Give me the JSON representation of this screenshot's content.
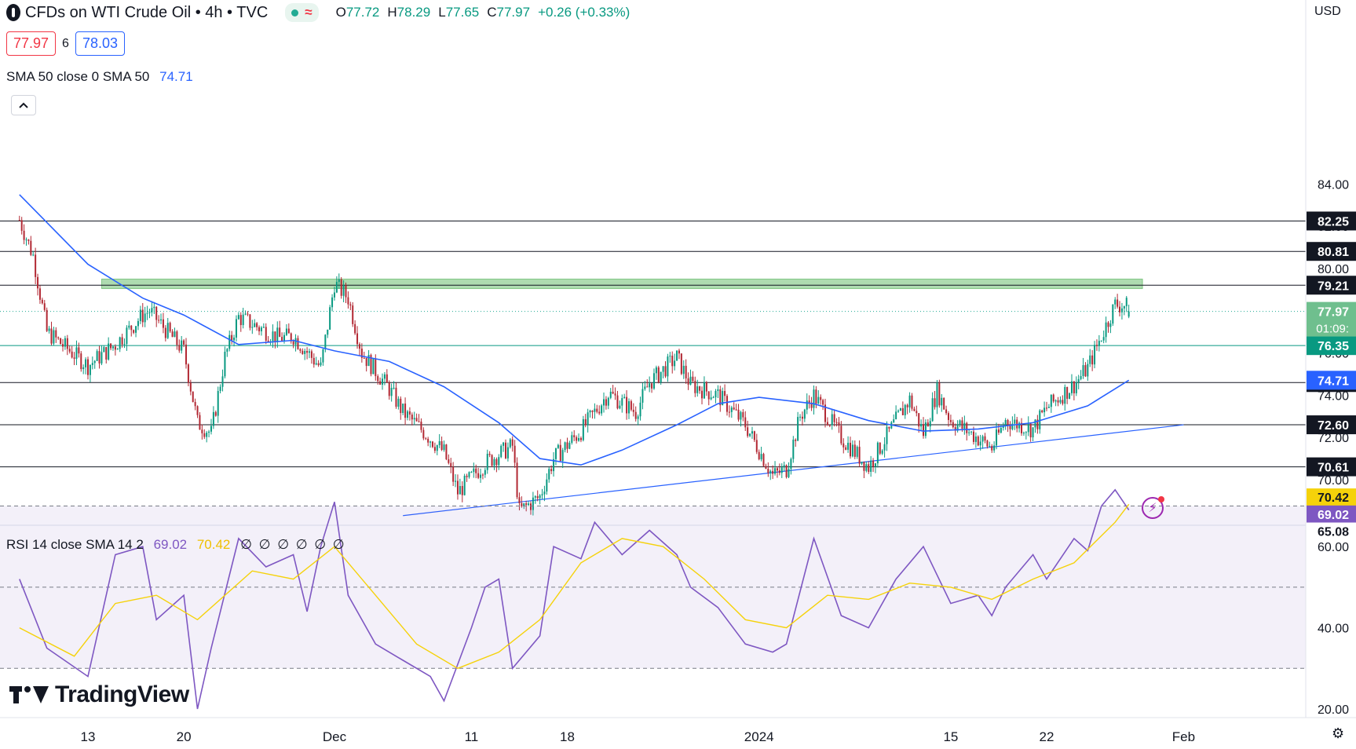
{
  "header": {
    "title": "CFDs on WTI Crude Oil • 4h • TVC",
    "wave_symbol": "≈",
    "ohlc": [
      {
        "k": "O",
        "v": "77.72"
      },
      {
        "k": "H",
        "v": "78.29"
      },
      {
        "k": "L",
        "v": "77.65"
      },
      {
        "k": "C",
        "v": "77.97"
      },
      {
        "k": "",
        "v": "+0.26 (+0.33%)"
      }
    ]
  },
  "trade": {
    "sell": "77.97",
    "spread": "6",
    "buy": "78.03"
  },
  "sma_legend": {
    "label": "SMA 50 close 0 SMA 50",
    "value": "74.71"
  },
  "rsi_legend": {
    "label": "RSI 14 close SMA 14 2",
    "rsi": "69.02",
    "rsi_sma": "70.42",
    "nulls": "∅ ∅ ∅ ∅ ∅ ∅"
  },
  "watermark": "TradingView",
  "currency": "USD",
  "icons": {
    "collapse": "chevron-up-icon",
    "flash": "flash-icon",
    "settings": "settings-icon"
  },
  "colors": {
    "up": "#089981",
    "down": "#b22833",
    "sma": "#2962ff",
    "rsi": "#7e57c2",
    "rsi_sma": "#f5d20a",
    "zone": "#4caf50"
  },
  "chart_data": [
    {
      "type": "candlestick",
      "title": "CFDs on WTI Crude Oil • 4h • TVC",
      "xlabel": "",
      "ylabel": "",
      "x_tick_labels": [
        "13",
        "20",
        "Dec",
        "11",
        "18",
        "2024",
        "15",
        "22",
        "Feb"
      ],
      "y_tick_labels": [
        "70.00",
        "72.00",
        "74.00",
        "76.00",
        "78.00",
        "80.00",
        "82.00",
        "84.00"
      ],
      "ylim": [
        68.2,
        86.0
      ],
      "timeline": [
        "2023-11-08",
        "2024-01-29"
      ],
      "close_path": [
        [
          "2023-11-08",
          82.3
        ],
        [
          "2023-11-09",
          80.6
        ],
        [
          "2023-11-10",
          77.0
        ],
        [
          "2023-11-13",
          75.4
        ],
        [
          "2023-11-15",
          76.4
        ],
        [
          "2023-11-17",
          77.8
        ],
        [
          "2023-11-17 12:00",
          78.0
        ],
        [
          "2023-11-20",
          76.1
        ],
        [
          "2023-11-21",
          72.7
        ],
        [
          "2023-11-22",
          72.2
        ],
        [
          "2023-11-23",
          75.8
        ],
        [
          "2023-11-24",
          77.7
        ],
        [
          "2023-11-27",
          76.7
        ],
        [
          "2023-11-28",
          76.8
        ],
        [
          "2023-11-30",
          75.3
        ],
        [
          "2023-12-01",
          79.3
        ],
        [
          "2023-12-02",
          78.6
        ],
        [
          "2023-12-03",
          76.0
        ],
        [
          "2023-12-05",
          74.3
        ],
        [
          "2023-12-06",
          73.2
        ],
        [
          "2023-12-07",
          72.6
        ],
        [
          "2023-12-09",
          71.3
        ],
        [
          "2023-12-10",
          69.4
        ],
        [
          "2023-12-12",
          70.8
        ],
        [
          "2023-12-14",
          71.6
        ],
        [
          "2023-12-14 12:00",
          68.5
        ],
        [
          "2023-12-16",
          69.2
        ],
        [
          "2023-12-17",
          71.0
        ],
        [
          "2023-12-19",
          72.3
        ],
        [
          "2023-12-21",
          74.1
        ],
        [
          "2023-12-23",
          73.2
        ],
        [
          "2023-12-24",
          74.6
        ],
        [
          "2023-12-26",
          75.8
        ],
        [
          "2023-12-27",
          74.5
        ],
        [
          "2023-12-29",
          74.0
        ],
        [
          "2023-12-31",
          72.6
        ],
        [
          "2024-01-02",
          70.2
        ],
        [
          "2024-01-03",
          70.5
        ],
        [
          "2024-01-04",
          73.0
        ],
        [
          "2024-01-05",
          74.0
        ],
        [
          "2024-01-07",
          72.0
        ],
        [
          "2024-01-09",
          70.6
        ],
        [
          "2024-01-11",
          72.8
        ],
        [
          "2024-01-12",
          73.8
        ],
        [
          "2024-01-13",
          72.2
        ],
        [
          "2024-01-14",
          74.2
        ],
        [
          "2024-01-15",
          72.8
        ],
        [
          "2024-01-16",
          72.4
        ],
        [
          "2024-01-18",
          71.5
        ],
        [
          "2024-01-19",
          72.8
        ],
        [
          "2024-01-21",
          72.4
        ],
        [
          "2024-01-22",
          73.4
        ],
        [
          "2024-01-24",
          74.5
        ],
        [
          "2024-01-25",
          75.3
        ],
        [
          "2024-01-26",
          76.8
        ],
        [
          "2024-01-27",
          78.3
        ],
        [
          "2024-01-28",
          78.2
        ]
      ],
      "last_candle": {
        "open": 77.72,
        "high": 78.29,
        "low": 77.65,
        "close": 77.97
      },
      "series": [
        {
          "name": "SMA 50",
          "points": [
            [
              "2023-11-08",
              83.5
            ],
            [
              "2023-11-13",
              80.2
            ],
            [
              "2023-11-17",
              78.6
            ],
            [
              "2023-11-20",
              77.8
            ],
            [
              "2023-11-24",
              76.4
            ],
            [
              "2023-11-28",
              76.6
            ],
            [
              "2023-12-01",
              76.1
            ],
            [
              "2023-12-05",
              75.6
            ],
            [
              "2023-12-09",
              74.4
            ],
            [
              "2023-12-13",
              72.7
            ],
            [
              "2023-12-16",
              71.0
            ],
            [
              "2023-12-19",
              70.7
            ],
            [
              "2023-12-22",
              71.4
            ],
            [
              "2023-12-26",
              72.6
            ],
            [
              "2023-12-29",
              73.6
            ],
            [
              "2024-01-01",
              73.9
            ],
            [
              "2024-01-05",
              73.6
            ],
            [
              "2024-01-09",
              72.8
            ],
            [
              "2024-01-13",
              72.3
            ],
            [
              "2024-01-17",
              72.4
            ],
            [
              "2024-01-21",
              72.7
            ],
            [
              "2024-01-25",
              73.5
            ],
            [
              "2024-01-28",
              74.71
            ]
          ]
        }
      ],
      "horizontal_levels": [
        82.25,
        80.81,
        79.21,
        76.35,
        74.6,
        72.6,
        70.61
      ],
      "current_price": {
        "value": "77.97",
        "countdown": "01:09:",
        "y": 77.97
      },
      "sma_badge": {
        "value": "74.71",
        "y": 74.71
      },
      "resistance_zone": {
        "x": [
          "2023-11-14",
          "2024-01-29"
        ],
        "y": [
          79.05,
          79.5
        ]
      },
      "trendline": {
        "points": [
          [
            "2023-12-06",
            68.3
          ],
          [
            "2024-02-01",
            72.6
          ]
        ]
      }
    },
    {
      "type": "line",
      "title": "RSI 14 close SMA 14 2",
      "xlabel": "",
      "ylabel": "",
      "y_tick_labels": [
        "20.00",
        "40.00",
        "60.00"
      ],
      "ylim": [
        19,
        84
      ],
      "bands": [
        70,
        50,
        30
      ],
      "series": [
        {
          "name": "RSI",
          "points": [
            [
              "2023-11-08",
              52
            ],
            [
              "2023-11-10",
              35
            ],
            [
              "2023-11-13",
              28
            ],
            [
              "2023-11-15",
              58
            ],
            [
              "2023-11-17",
              60
            ],
            [
              "2023-11-18",
              42
            ],
            [
              "2023-11-20",
              48
            ],
            [
              "2023-11-21",
              20
            ],
            [
              "2023-11-22",
              35
            ],
            [
              "2023-11-24",
              62
            ],
            [
              "2023-11-26",
              55
            ],
            [
              "2023-11-28",
              58
            ],
            [
              "2023-11-29",
              44
            ],
            [
              "2023-11-30",
              60
            ],
            [
              "2023-12-01",
              71
            ],
            [
              "2023-12-02",
              48
            ],
            [
              "2023-12-04",
              36
            ],
            [
              "2023-12-06",
              32
            ],
            [
              "2023-12-08",
              28
            ],
            [
              "2023-12-09",
              22
            ],
            [
              "2023-12-11",
              40
            ],
            [
              "2023-12-12",
              50
            ],
            [
              "2023-12-13",
              52
            ],
            [
              "2023-12-14",
              30
            ],
            [
              "2023-12-16",
              38
            ],
            [
              "2023-12-17",
              60
            ],
            [
              "2023-12-19",
              57
            ],
            [
              "2023-12-20",
              66
            ],
            [
              "2023-12-22",
              58
            ],
            [
              "2023-12-24",
              64
            ],
            [
              "2023-12-26",
              58
            ],
            [
              "2023-12-27",
              50
            ],
            [
              "2023-12-29",
              45
            ],
            [
              "2023-12-31",
              36
            ],
            [
              "2024-01-02",
              34
            ],
            [
              "2024-01-03",
              36
            ],
            [
              "2024-01-05",
              62
            ],
            [
              "2024-01-07",
              43
            ],
            [
              "2024-01-09",
              40
            ],
            [
              "2024-01-11",
              52
            ],
            [
              "2024-01-13",
              60
            ],
            [
              "2024-01-15",
              46
            ],
            [
              "2024-01-17",
              48
            ],
            [
              "2024-01-18",
              43
            ],
            [
              "2024-01-19",
              50
            ],
            [
              "2024-01-21",
              58
            ],
            [
              "2024-01-22",
              52
            ],
            [
              "2024-01-24",
              62
            ],
            [
              "2024-01-25",
              59
            ],
            [
              "2024-01-26",
              70
            ],
            [
              "2024-01-27",
              74
            ],
            [
              "2024-01-28",
              69.02
            ]
          ]
        },
        {
          "name": "RSI-based MA",
          "points": [
            [
              "2023-11-08",
              40
            ],
            [
              "2023-11-12",
              33
            ],
            [
              "2023-11-15",
              46
            ],
            [
              "2023-11-18",
              48
            ],
            [
              "2023-11-21",
              42
            ],
            [
              "2023-11-25",
              54
            ],
            [
              "2023-11-28",
              52
            ],
            [
              "2023-12-01",
              60
            ],
            [
              "2023-12-04",
              48
            ],
            [
              "2023-12-07",
              36
            ],
            [
              "2023-12-10",
              30
            ],
            [
              "2023-12-13",
              34
            ],
            [
              "2023-12-16",
              42
            ],
            [
              "2023-12-19",
              56
            ],
            [
              "2023-12-22",
              62
            ],
            [
              "2023-12-25",
              60
            ],
            [
              "2023-12-28",
              52
            ],
            [
              "2023-12-31",
              42
            ],
            [
              "2024-01-03",
              40
            ],
            [
              "2024-01-06",
              48
            ],
            [
              "2024-01-09",
              47
            ],
            [
              "2024-01-12",
              51
            ],
            [
              "2024-01-15",
              50
            ],
            [
              "2024-01-18",
              47
            ],
            [
              "2024-01-21",
              52
            ],
            [
              "2024-01-24",
              56
            ],
            [
              "2024-01-27",
              66
            ],
            [
              "2024-01-28",
              70.42
            ]
          ]
        }
      ],
      "badges": [
        {
          "value": "70.42",
          "y": 72.2,
          "color": "rsi_sma"
        },
        {
          "value": "69.02",
          "y": 68.0,
          "color": "rsi"
        },
        {
          "value": "65.08",
          "y": 63.8,
          "color": "plain"
        }
      ]
    }
  ]
}
